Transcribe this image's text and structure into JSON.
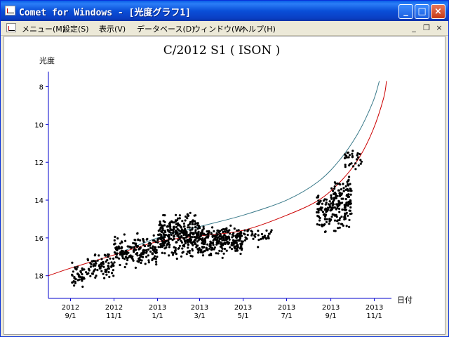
{
  "window": {
    "title": "Comet for Windows - [光度グラフ1]",
    "buttons": {
      "minimize": "_",
      "maximize": "□",
      "close": "×"
    }
  },
  "menu": {
    "items": [
      "メニュー(M)",
      "設定(S)",
      "表示(V)",
      "データベース(D)",
      "ウィンドウ(W)",
      "ヘルプ(H)"
    ],
    "mdi_buttons": {
      "minimize": "_",
      "restore": "❐",
      "close": "×"
    }
  },
  "chart_data": {
    "type": "scatter",
    "title": "C/2012 S1 ( ISON )",
    "ylabel": "光度",
    "xlabel": "日付",
    "y_inverted": true,
    "ylim": [
      19.2,
      7.2
    ],
    "yticks": [
      8,
      10,
      12,
      14,
      16,
      18
    ],
    "xlim": [
      "2012-08-01",
      "2013-11-25"
    ],
    "xticks": [
      {
        "date": "2012-09-01",
        "label1": "2012",
        "label2": "9/1"
      },
      {
        "date": "2012-11-01",
        "label1": "2012",
        "label2": "11/1"
      },
      {
        "date": "2013-01-01",
        "label1": "2013",
        "label2": "1/1"
      },
      {
        "date": "2013-03-01",
        "label1": "2013",
        "label2": "3/1"
      },
      {
        "date": "2013-05-01",
        "label1": "2013",
        "label2": "5/1"
      },
      {
        "date": "2013-07-01",
        "label1": "2013",
        "label2": "7/1"
      },
      {
        "date": "2013-09-01",
        "label1": "2013",
        "label2": "9/1"
      },
      {
        "date": "2013-11-01",
        "label1": "2013",
        "label2": "11/1"
      }
    ],
    "curves": [
      {
        "color": "#3a7a8a",
        "points": [
          [
            "2012-11-01",
            16.9
          ],
          [
            "2013-01-01",
            16.0
          ],
          [
            "2013-03-01",
            15.4
          ],
          [
            "2013-05-01",
            14.8
          ],
          [
            "2013-07-01",
            14.0
          ],
          [
            "2013-08-15",
            13.0
          ],
          [
            "2013-09-15",
            11.8
          ],
          [
            "2013-10-10",
            10.4
          ],
          [
            "2013-10-30",
            8.8
          ],
          [
            "2013-11-08",
            7.7
          ]
        ]
      },
      {
        "color": "#cc0000",
        "points": [
          [
            "2012-08-01",
            18.0
          ],
          [
            "2012-09-01",
            17.6
          ],
          [
            "2012-11-01",
            16.9
          ],
          [
            "2013-01-01",
            16.2
          ],
          [
            "2013-03-01",
            15.9
          ],
          [
            "2013-05-01",
            15.6
          ],
          [
            "2013-07-01",
            14.8
          ],
          [
            "2013-08-15",
            14.0
          ],
          [
            "2013-09-15",
            13.0
          ],
          [
            "2013-10-10",
            11.8
          ],
          [
            "2013-10-30",
            10.3
          ],
          [
            "2013-11-14",
            8.6
          ],
          [
            "2013-11-18",
            7.7
          ]
        ]
      }
    ],
    "observations": [
      {
        "from": "2012-09-01",
        "to": "2012-09-25",
        "mag_min": 17.1,
        "mag_max": 18.8,
        "count": 45
      },
      {
        "from": "2012-09-25",
        "to": "2012-11-01",
        "mag_min": 16.6,
        "mag_max": 18.4,
        "count": 80
      },
      {
        "from": "2012-11-01",
        "to": "2013-01-01",
        "mag_min": 15.6,
        "mag_max": 17.8,
        "count": 180
      },
      {
        "from": "2013-01-01",
        "to": "2013-03-01",
        "mag_min": 14.4,
        "mag_max": 17.3,
        "count": 320
      },
      {
        "from": "2013-03-01",
        "to": "2013-05-01",
        "mag_min": 15.0,
        "mag_max": 17.2,
        "count": 260
      },
      {
        "from": "2013-05-01",
        "to": "2013-06-10",
        "mag_min": 15.1,
        "mag_max": 16.6,
        "count": 40
      },
      {
        "from": "2013-08-12",
        "to": "2013-09-01",
        "mag_min": 13.4,
        "mag_max": 16.0,
        "count": 70
      },
      {
        "from": "2013-09-01",
        "to": "2013-09-30",
        "mag_min": 12.2,
        "mag_max": 16.2,
        "count": 160
      },
      {
        "from": "2013-09-20",
        "to": "2013-10-15",
        "mag_min": 10.8,
        "mag_max": 12.8,
        "count": 30
      }
    ]
  }
}
